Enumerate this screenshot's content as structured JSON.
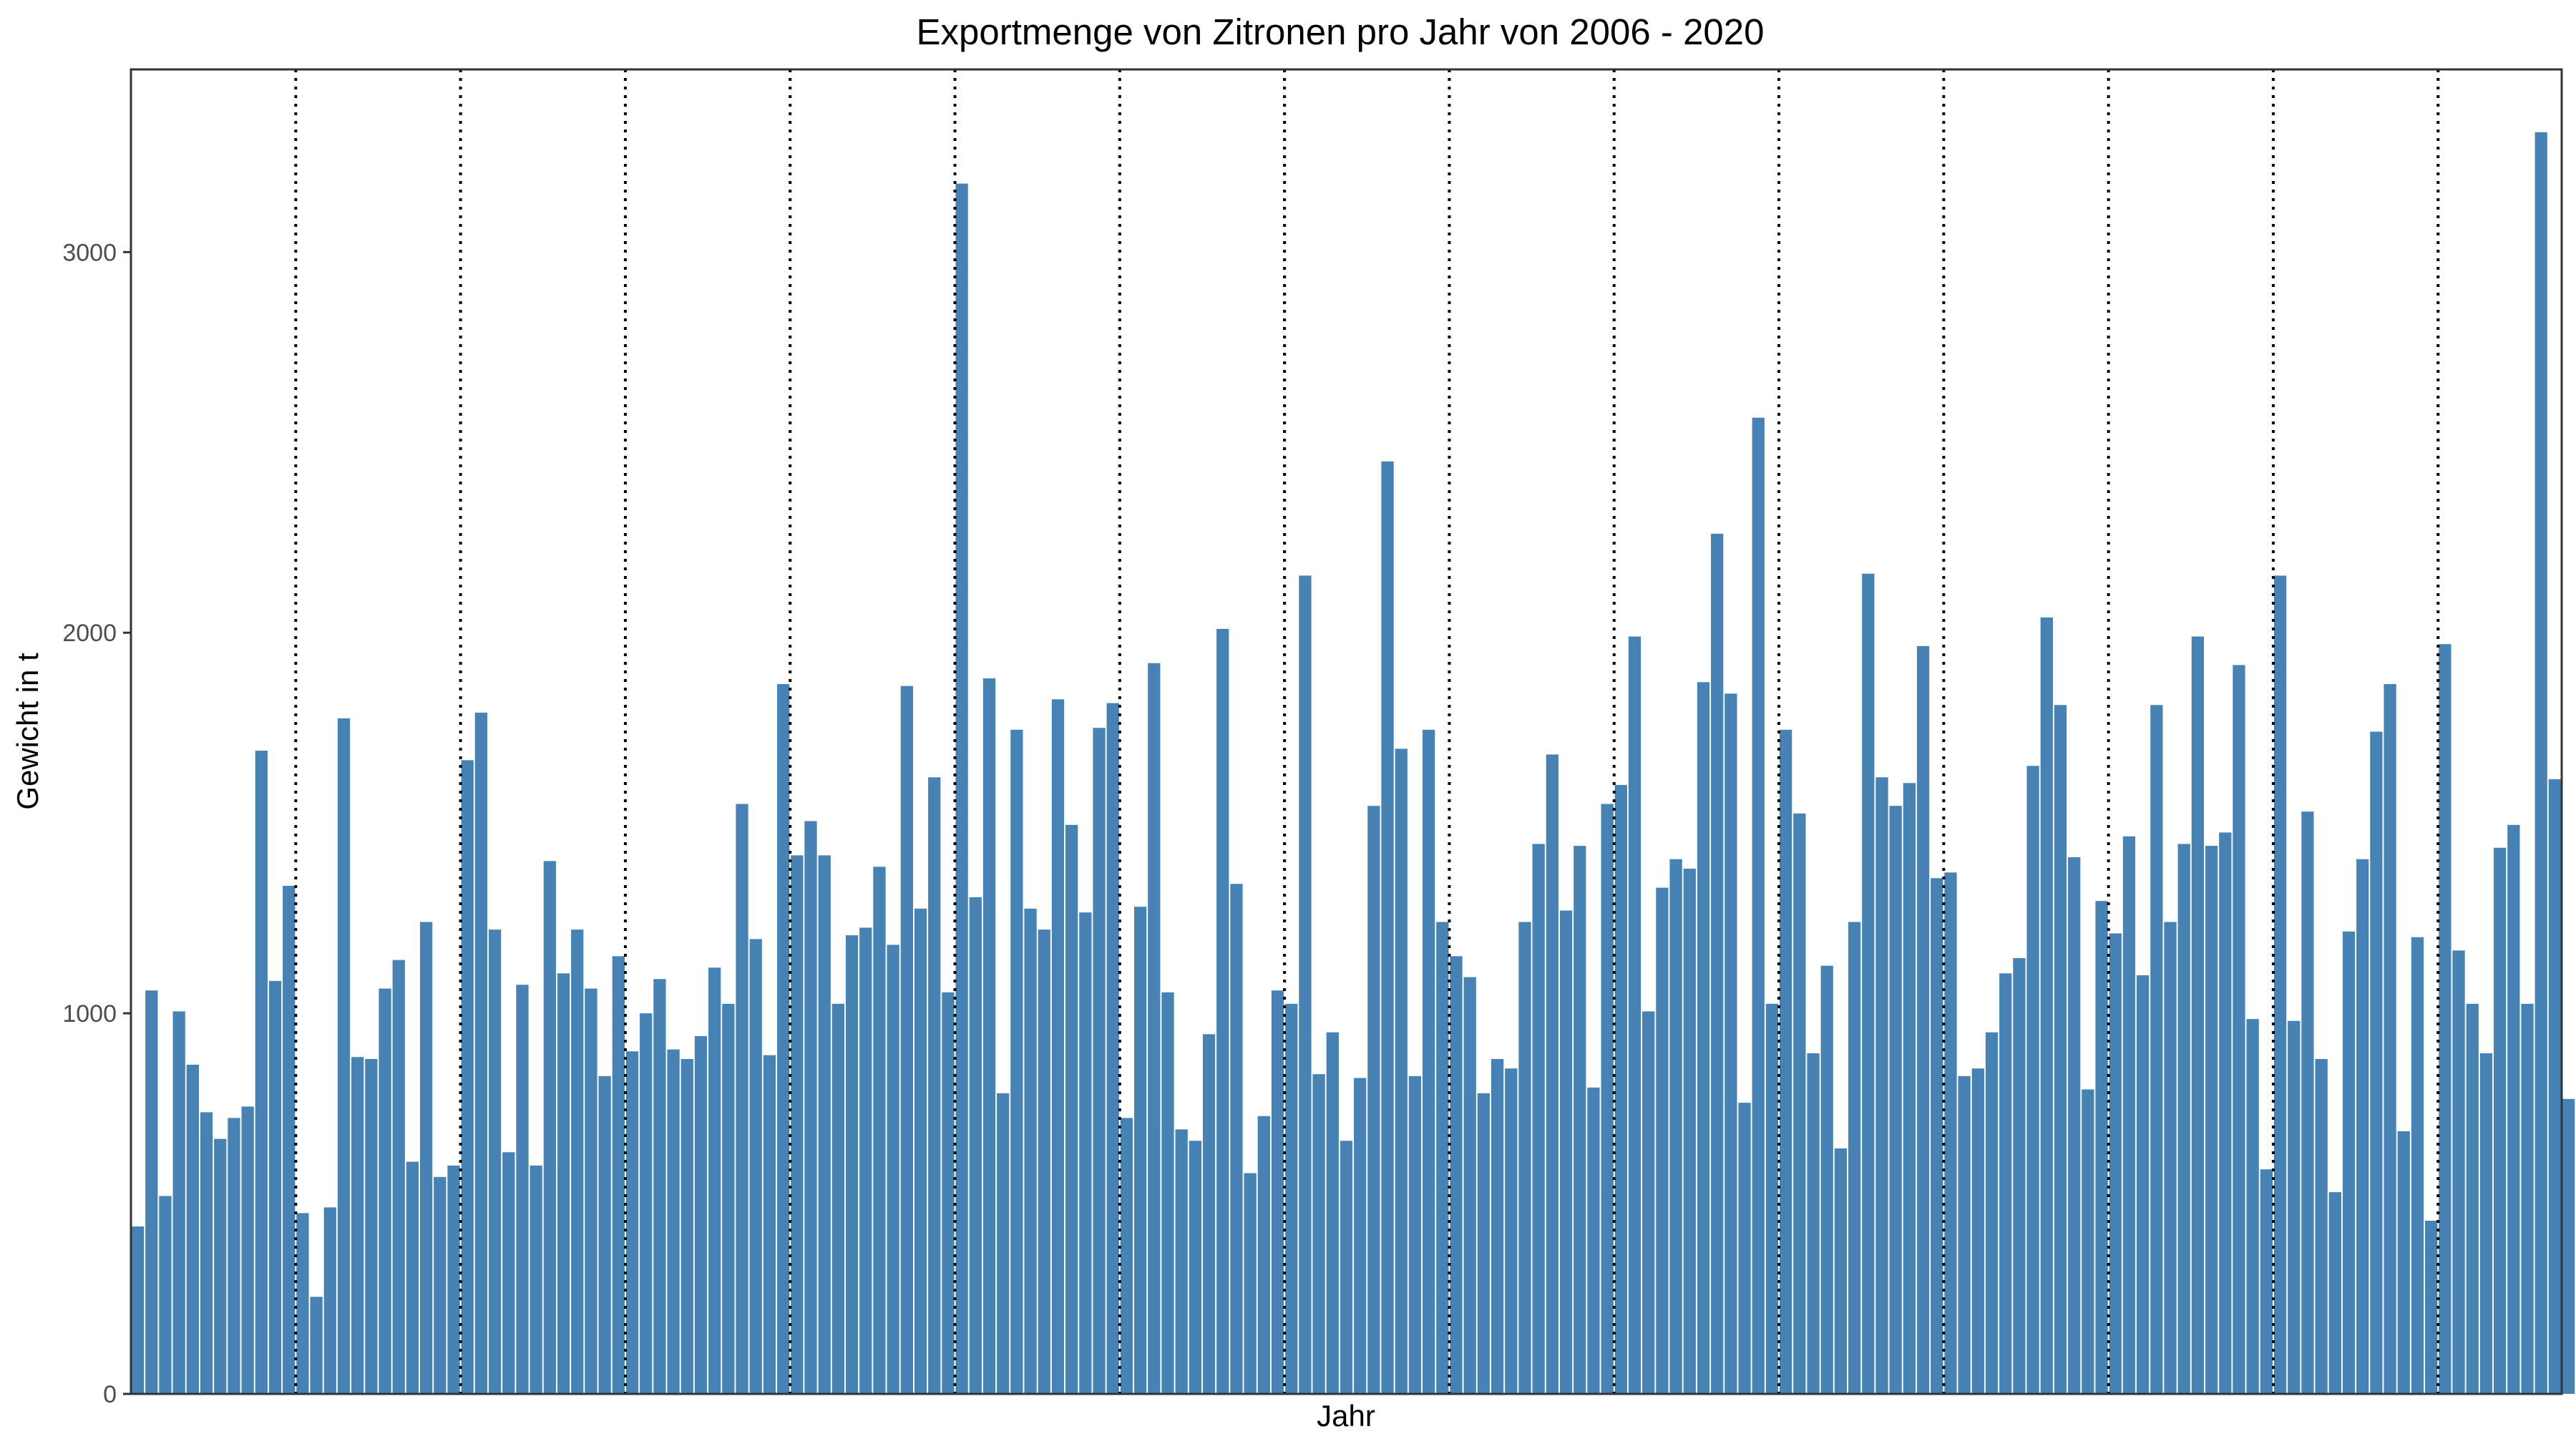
{
  "colors": {
    "bar": "#4682b4",
    "background": "#ffffff",
    "panel_border": "#333333",
    "tick_text": "#4d4d4d",
    "separator": "#000000"
  },
  "chart_data": {
    "type": "bar",
    "title": "Exportmenge von Zitronen pro Jahr von 2006 - 2020",
    "xlabel": "Jahr",
    "ylabel": "Gewicht in t",
    "ylim": [
      0,
      3480
    ],
    "xlim": [
      0.5,
      177.5
    ],
    "yticks": [
      0,
      1000,
      2000,
      3000
    ],
    "ytick_labels": [
      "0",
      "1000",
      "2000",
      "3000"
    ],
    "grid": false,
    "legend": "none",
    "year_separator_style": "dotted vertical lines between years",
    "year_separators_after_bar": [
      12,
      24,
      36,
      48,
      60,
      72,
      84,
      96,
      108,
      120,
      132,
      144,
      156,
      168
    ],
    "values": [
      440,
      1060,
      520,
      1005,
      865,
      740,
      670,
      725,
      755,
      1690,
      1085,
      1335,
      475,
      255,
      490,
      1775,
      885,
      880,
      1065,
      1140,
      610,
      1240,
      570,
      600,
      1665,
      1790,
      1220,
      635,
      1075,
      600,
      1400,
      1105,
      1220,
      1065,
      835,
      1150,
      900,
      1000,
      1090,
      905,
      880,
      940,
      1120,
      1025,
      1550,
      1195,
      890,
      1865,
      1415,
      1505,
      1415,
      1025,
      1205,
      1225,
      1385,
      1180,
      1860,
      1275,
      1620,
      1055,
      3180,
      1305,
      1880,
      790,
      1745,
      1275,
      1220,
      1825,
      1495,
      1265,
      1750,
      1815,
      725,
      1280,
      1920,
      1055,
      695,
      665,
      945,
      2010,
      1340,
      580,
      730,
      1060,
      1025,
      2150,
      840,
      950,
      665,
      830,
      1545,
      2450,
      1695,
      835,
      1745,
      1240,
      1150,
      1095,
      790,
      880,
      855,
      1240,
      1445,
      1680,
      1270,
      1440,
      805,
      1550,
      1600,
      1990,
      1005,
      1330,
      1405,
      1380,
      1870,
      2260,
      1840,
      765,
      2565,
      1025,
      1745,
      1525,
      895,
      1125,
      645,
      1240,
      2155,
      1620,
      1545,
      1605,
      1965,
      1355,
      1370,
      835,
      855,
      950,
      1105,
      1145,
      1650,
      2040,
      1810,
      1410,
      800,
      1295,
      1210,
      1465,
      1100,
      1810,
      1240,
      1445,
      1990,
      1440,
      1475,
      1915,
      985,
      590,
      2150,
      980,
      1530,
      880,
      530,
      1215,
      1405,
      1740,
      1865,
      690,
      1200,
      455,
      1970,
      1165,
      1025,
      895,
      1435,
      1495,
      1025,
      3315,
      1615,
      775
    ]
  }
}
